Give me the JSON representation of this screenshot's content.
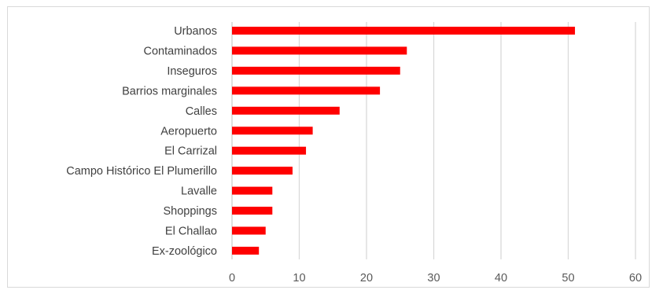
{
  "chart_data": {
    "type": "bar",
    "orientation": "horizontal",
    "title": "",
    "xlabel": "",
    "ylabel": "",
    "categories": [
      "Urbanos",
      "Contaminados",
      "Inseguros",
      "Barrios marginales",
      "Calles",
      "Aeropuerto",
      "El Carrizal",
      "Campo Histórico El Plumerillo",
      "Lavalle",
      "Shoppings",
      "El Challao",
      "Ex-zoológico"
    ],
    "values": [
      51,
      26,
      25,
      22,
      16,
      12,
      11,
      9,
      6,
      6,
      5,
      4
    ],
    "xlim": [
      0,
      60
    ],
    "xticks": [
      "0",
      "10",
      "20",
      "30",
      "40",
      "50",
      "60"
    ],
    "bar_color": "#ff0000",
    "grid": "vertical",
    "legend": "none"
  }
}
